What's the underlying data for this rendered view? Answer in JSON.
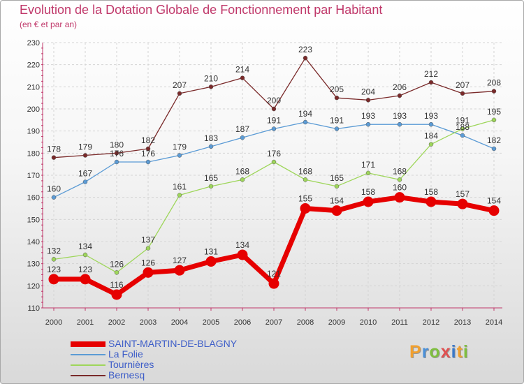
{
  "chart_data": {
    "type": "line",
    "title": "Evolution de la Dotation Globale de Fonctionnement par Habitant",
    "subtitle": "(en € et par an)",
    "xlabel": "",
    "ylabel": "",
    "x": [
      "2000",
      "2001",
      "2002",
      "2003",
      "2004",
      "2005",
      "2006",
      "2007",
      "2008",
      "2009",
      "2010",
      "2011",
      "2012",
      "2013",
      "2014"
    ],
    "ylim": [
      110,
      230
    ],
    "yticks": [
      110,
      120,
      130,
      140,
      150,
      160,
      170,
      180,
      190,
      200,
      210,
      220,
      230
    ],
    "grid": true,
    "legend_position": "bottom-left",
    "series": [
      {
        "name": "SAINT-MARTIN-DE-BLAGNY",
        "color": "#e60000",
        "emphasis": "thick",
        "values": [
          123,
          123,
          116,
          126,
          127,
          131,
          134,
          121,
          155,
          154,
          158,
          160,
          158,
          157,
          154
        ]
      },
      {
        "name": "La Folie",
        "color": "#5b9bd5",
        "emphasis": "thin",
        "values": [
          160,
          167,
          176,
          176,
          179,
          183,
          187,
          191,
          194,
          191,
          193,
          193,
          193,
          188,
          182
        ]
      },
      {
        "name": "Tournières",
        "color": "#9ed65a",
        "emphasis": "thin",
        "values": [
          132,
          134,
          126,
          137,
          161,
          165,
          168,
          176,
          168,
          165,
          171,
          168,
          184,
          191,
          195
        ]
      },
      {
        "name": "Bernesq",
        "color": "#7a2a2a",
        "emphasis": "thin",
        "values": [
          178,
          179,
          180,
          182,
          207,
          210,
          214,
          200,
          223,
          205,
          204,
          206,
          212,
          207,
          208
        ]
      }
    ]
  },
  "brand": {
    "letters": [
      "P",
      "r",
      "o",
      "x",
      "i",
      "t",
      "i"
    ],
    "colors": [
      "#f0a030",
      "#4a90d9",
      "#7fbf3f",
      "#e05050",
      "#3a78c8",
      "#f0a030",
      "#7fbf3f"
    ]
  }
}
